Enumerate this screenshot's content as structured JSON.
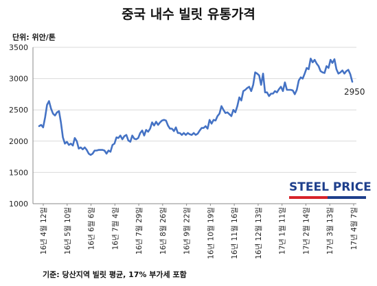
{
  "title": "중국 내수 빌릿 유통가격",
  "unit_label": "단위: 위안/톤",
  "source_note": "기준: 당산지역 빌릿 평균, 17% 부가세 포함",
  "logo_text": "STEEL PRICE",
  "colors": {
    "line": "#4472c4",
    "grid": "#d9d9d9",
    "axis": "#888888",
    "logo_red": "#d8232a",
    "logo_blue": "#1e3f8c"
  },
  "chart_data": {
    "type": "line",
    "title": "중국 내수 빌릿 유통가격",
    "ylabel": "단위: 위안/톤",
    "xlabel": "",
    "ylim": [
      1000,
      3500
    ],
    "yticks": [
      1000,
      1500,
      2000,
      2500,
      3000,
      3500
    ],
    "grid": true,
    "x_tick_labels": [
      "16년 4월 12일",
      "16년 5월 10일",
      "16년 6월 6일",
      "16년 7월 4일",
      "16년 7월 29일",
      "16년 8월 26일",
      "16년 9월 22일",
      "16년 10월 19일",
      "16년 11월 16일",
      "16년 12월 13일",
      "17년 1월 11일",
      "17년 2월 14일",
      "17년 3월 13일",
      "17년 4월 7일"
    ],
    "end_label": "2950",
    "series": [
      {
        "values": [
          2240,
          2260,
          2220,
          2380,
          2580,
          2640,
          2520,
          2440,
          2410,
          2460,
          2480,
          2300,
          2060,
          1960,
          1990,
          1940,
          1960,
          1930,
          2050,
          2000,
          1880,
          1900,
          1870,
          1900,
          1860,
          1800,
          1780,
          1800,
          1850,
          1850,
          1860,
          1860,
          1860,
          1850,
          1800,
          1850,
          1830,
          1940,
          1960,
          2060,
          2050,
          2090,
          2030,
          2080,
          2100,
          2010,
          1990,
          2090,
          2040,
          2030,
          2050,
          2130,
          2170,
          2090,
          2180,
          2150,
          2200,
          2300,
          2250,
          2310,
          2260,
          2300,
          2330,
          2340,
          2330,
          2250,
          2200,
          2200,
          2160,
          2220,
          2130,
          2130,
          2100,
          2130,
          2100,
          2130,
          2110,
          2100,
          2130,
          2100,
          2120,
          2170,
          2210,
          2210,
          2240,
          2200,
          2340,
          2280,
          2340,
          2330,
          2400,
          2440,
          2560,
          2500,
          2450,
          2460,
          2430,
          2400,
          2500,
          2460,
          2560,
          2700,
          2650,
          2800,
          2820,
          2850,
          2870,
          2800,
          2900,
          3100,
          3080,
          3050,
          2900,
          3080,
          2780,
          2780,
          2720,
          2760,
          2760,
          2800,
          2780,
          2830,
          2870,
          2800,
          2940,
          2820,
          2820,
          2820,
          2810,
          2750,
          2820,
          2970,
          3020,
          3000,
          3080,
          3170,
          3150,
          3320,
          3260,
          3300,
          3240,
          3200,
          3120,
          3100,
          3090,
          3200,
          3170,
          3300,
          3250,
          3310,
          3150,
          3080,
          3100,
          3130,
          3080,
          3120,
          3140,
          3070,
          2950
        ]
      }
    ]
  }
}
